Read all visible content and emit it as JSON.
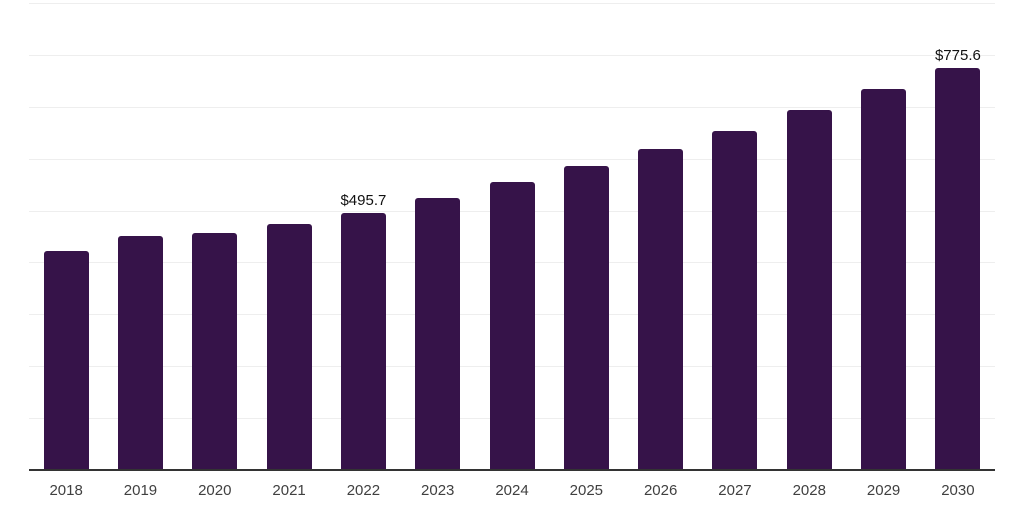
{
  "chart_data": {
    "type": "bar",
    "title": "",
    "xlabel": "",
    "ylabel": "",
    "categories": [
      "2018",
      "2019",
      "2020",
      "2021",
      "2022",
      "2023",
      "2024",
      "2025",
      "2026",
      "2027",
      "2028",
      "2029",
      "2030"
    ],
    "values": [
      422.0,
      451.2,
      455.9,
      474.0,
      495.7,
      524.5,
      554.4,
      585.8,
      618.0,
      653.4,
      693.6,
      734.1,
      775.6
    ],
    "point_labels": [
      "",
      "",
      "",
      "",
      "$495.7",
      "",
      "",
      "",
      "",
      "",
      "",
      "",
      "$775.6"
    ],
    "value_prefix": "$",
    "ylim": [
      0,
      900
    ],
    "gridline_step": 100,
    "grid": true,
    "legend_position": "none",
    "colors": {
      "bar": "#361349",
      "gridline": "#eeeeee",
      "axis_line": "#333333",
      "point_label_text": "#111111",
      "tick_label_text": "#404040",
      "background": "#ffffff"
    }
  }
}
